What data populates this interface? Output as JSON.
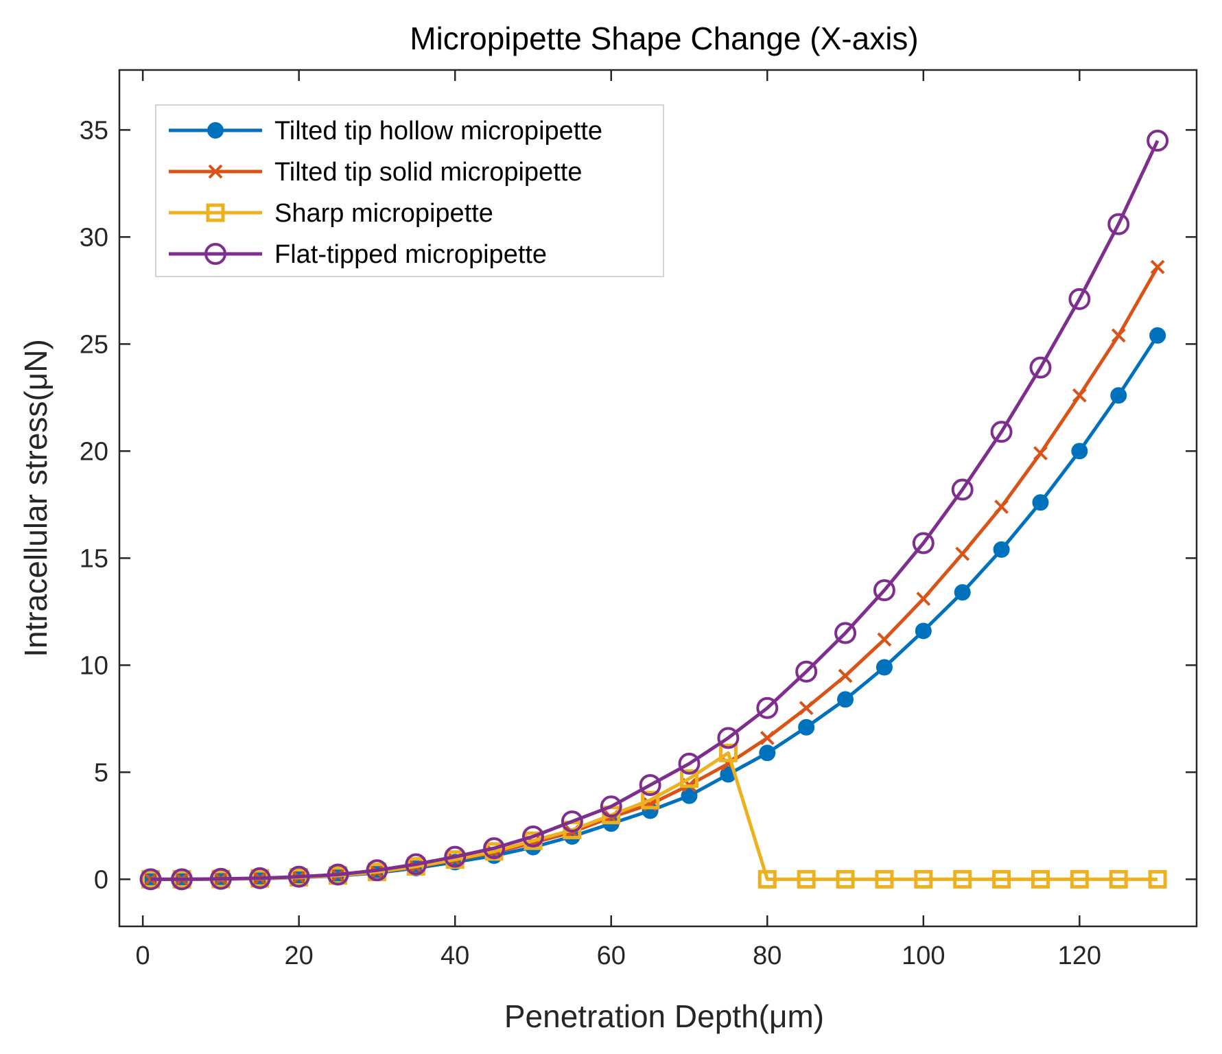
{
  "chart_data": {
    "type": "line",
    "title": "Micropipette Shape Change (X-axis)",
    "xlabel": "Penetration Depth(μm)",
    "ylabel": "Intracellular stress(μN)",
    "xlim": [
      -3,
      135
    ],
    "ylim": [
      -2.2,
      37.8
    ],
    "xticks": [
      0,
      20,
      40,
      60,
      80,
      100,
      120
    ],
    "yticks": [
      0,
      5,
      10,
      15,
      20,
      25,
      30,
      35
    ],
    "legend_position": "top-left",
    "series": [
      {
        "name": "Tilted tip hollow micropipette",
        "color": "#0072BD",
        "marker": "filled-circle",
        "x": [
          1,
          5,
          10,
          15,
          20,
          25,
          30,
          35,
          40,
          45,
          50,
          55,
          60,
          65,
          70,
          75,
          80,
          85,
          90,
          95,
          100,
          105,
          110,
          115,
          120,
          125,
          130
        ],
        "y": [
          0.0,
          0.0,
          0.01,
          0.03,
          0.08,
          0.16,
          0.3,
          0.52,
          0.8,
          1.1,
          1.5,
          2.0,
          2.6,
          3.2,
          3.9,
          4.9,
          5.9,
          7.1,
          8.4,
          9.9,
          11.6,
          13.4,
          15.4,
          17.6,
          20.0,
          22.6,
          25.4
        ]
      },
      {
        "name": "Tilted tip solid micropipette",
        "color": "#D95319",
        "marker": "x",
        "x": [
          1,
          5,
          10,
          15,
          20,
          25,
          30,
          35,
          40,
          45,
          50,
          55,
          60,
          65,
          70,
          75,
          80,
          85,
          90,
          95,
          100,
          105,
          110,
          115,
          120,
          125,
          130
        ],
        "y": [
          0.0,
          0.0,
          0.01,
          0.04,
          0.09,
          0.18,
          0.33,
          0.58,
          0.9,
          1.25,
          1.7,
          2.2,
          2.9,
          3.5,
          4.4,
          5.4,
          6.6,
          8.0,
          9.5,
          11.2,
          13.1,
          15.2,
          17.4,
          19.9,
          22.6,
          25.4,
          28.6
        ]
      },
      {
        "name": "Sharp micropipette",
        "color": "#EDB120",
        "marker": "square",
        "x": [
          1,
          5,
          10,
          15,
          20,
          25,
          30,
          35,
          40,
          45,
          50,
          55,
          60,
          65,
          70,
          75,
          80,
          85,
          90,
          95,
          100,
          105,
          110,
          115,
          120,
          125,
          130
        ],
        "y": [
          0.0,
          0.0,
          0.01,
          0.04,
          0.09,
          0.18,
          0.34,
          0.6,
          0.92,
          1.3,
          1.8,
          2.3,
          3.0,
          3.7,
          4.7,
          5.9,
          0.0,
          0.0,
          0.0,
          0.0,
          0.0,
          0.0,
          0.0,
          0.0,
          0.0,
          0.0,
          0.0
        ]
      },
      {
        "name": "Flat-tipped micropipette",
        "color": "#7E2F8E",
        "marker": "open-circle",
        "x": [
          1,
          5,
          10,
          15,
          20,
          25,
          30,
          35,
          40,
          45,
          50,
          55,
          60,
          65,
          70,
          75,
          80,
          85,
          90,
          95,
          100,
          105,
          110,
          115,
          120,
          125,
          130
        ],
        "y": [
          0.0,
          0.0,
          0.02,
          0.05,
          0.12,
          0.22,
          0.42,
          0.7,
          1.05,
          1.45,
          2.0,
          2.7,
          3.4,
          4.4,
          5.4,
          6.6,
          8.0,
          9.7,
          11.5,
          13.5,
          15.7,
          18.2,
          20.9,
          23.9,
          27.1,
          30.6,
          34.5
        ]
      }
    ]
  }
}
